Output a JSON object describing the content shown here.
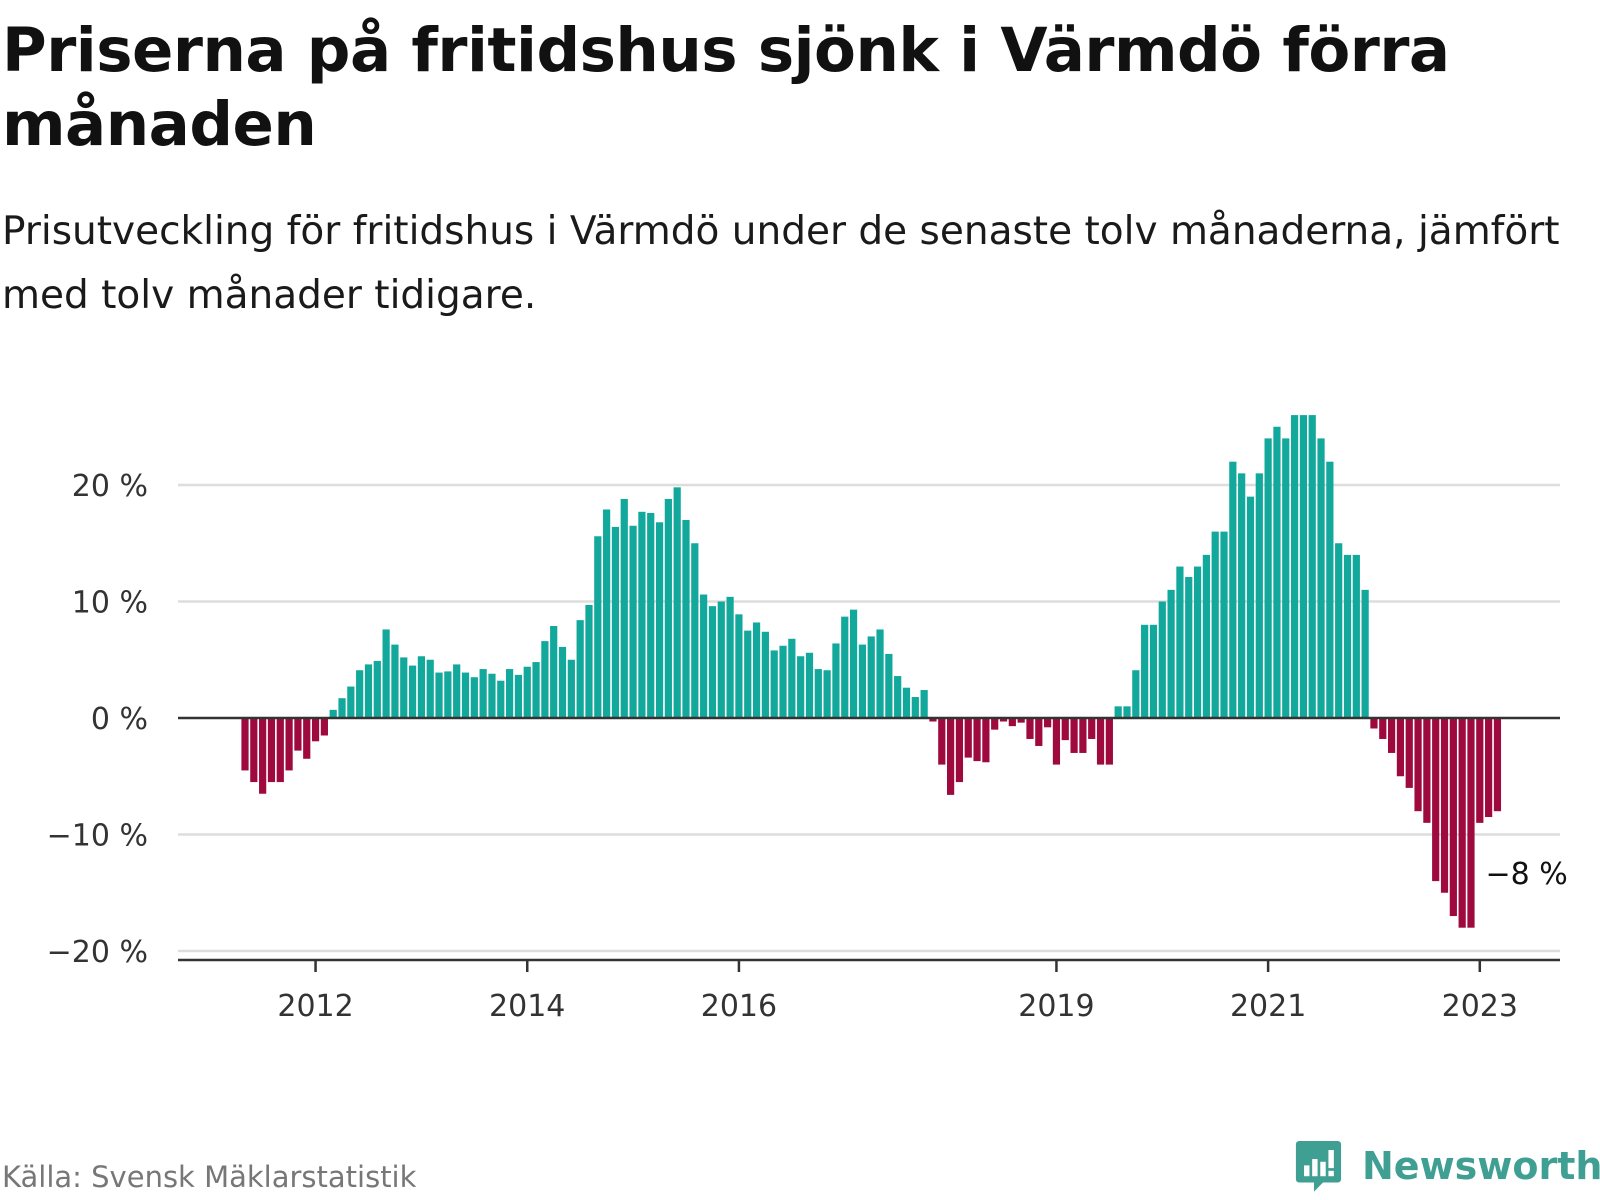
{
  "header": {
    "title": "Priserna på fritidshus sjönk i Värmdö förra månaden",
    "subtitle": "Prisutveckling för fritidshus i Värmdö under de senaste tolv månaderna, jämfört med tolv månader tidigare."
  },
  "footer": {
    "source": "Källa: Svensk Mäklarstatistik",
    "brand": "Newsworthy"
  },
  "colors": {
    "positive": "#12a89b",
    "negative": "#9e0a3d",
    "grid": "#dddddd",
    "axis": "#333333",
    "brand": "#3f9f93"
  },
  "chart_data": {
    "type": "bar",
    "title": "Priserna på fritidshus sjönk i Värmdö förra månaden",
    "xlabel": "",
    "ylabel": "",
    "unit": "%",
    "ylim": [
      -20,
      26
    ],
    "yticks": [
      {
        "value": 20,
        "label": "20 %"
      },
      {
        "value": 10,
        "label": "10 %"
      },
      {
        "value": 0,
        "label": "0 %"
      },
      {
        "value": -10,
        "label": "−10 %"
      },
      {
        "value": -20,
        "label": "−20 %"
      }
    ],
    "xticks": [
      {
        "index": 8,
        "label": "2012"
      },
      {
        "index": 32,
        "label": "2014"
      },
      {
        "index": 56,
        "label": "2016"
      },
      {
        "index": 92,
        "label": "2019"
      },
      {
        "index": 116,
        "label": "2021"
      },
      {
        "index": 140,
        "label": "2023"
      }
    ],
    "end_label": "−8 %",
    "values": [
      -4.5,
      -5.5,
      -6.5,
      -5.5,
      -5.5,
      -4.5,
      -2.8,
      -3.5,
      -2.0,
      -1.5,
      0.7,
      1.7,
      2.7,
      4.1,
      4.6,
      4.9,
      7.6,
      6.3,
      5.2,
      4.5,
      5.3,
      5.0,
      3.9,
      4.0,
      4.6,
      3.9,
      3.5,
      4.2,
      3.8,
      3.2,
      4.2,
      3.7,
      4.4,
      4.8,
      6.6,
      7.9,
      6.1,
      5.0,
      8.4,
      9.7,
      15.6,
      17.9,
      16.4,
      18.8,
      16.5,
      17.7,
      17.6,
      16.8,
      18.8,
      19.8,
      17.0,
      15.0,
      10.6,
      9.6,
      10.0,
      10.4,
      8.9,
      7.5,
      8.2,
      7.4,
      5.8,
      6.2,
      6.8,
      5.3,
      5.6,
      4.2,
      4.1,
      6.4,
      8.7,
      9.3,
      6.3,
      7.0,
      7.6,
      5.5,
      3.6,
      2.6,
      1.8,
      2.4,
      -0.3,
      -4.0,
      -6.6,
      -5.5,
      -3.4,
      -3.7,
      -3.8,
      -1.0,
      -0.3,
      -0.7,
      -0.4,
      -1.8,
      -2.4,
      -0.8,
      -4.0,
      -1.9,
      -3.0,
      -3.0,
      -1.8,
      -4.0,
      -4.0,
      1.0,
      1.0,
      4.1,
      8.0,
      8.0,
      10.0,
      11.0,
      13.0,
      12.1,
      13.0,
      14.0,
      16.0,
      16.0,
      22.0,
      21.0,
      19.0,
      21.0,
      24.0,
      25.0,
      24.0,
      26.0,
      26.0,
      26.0,
      24.0,
      22.0,
      15.0,
      14.0,
      14.0,
      11.0,
      -0.9,
      -1.8,
      -3.0,
      -5.0,
      -6.0,
      -8.0,
      -9.0,
      -14.0,
      -15.0,
      -17.0,
      -18.0,
      -18.0,
      -9.0,
      -8.5,
      -8.0
    ]
  }
}
